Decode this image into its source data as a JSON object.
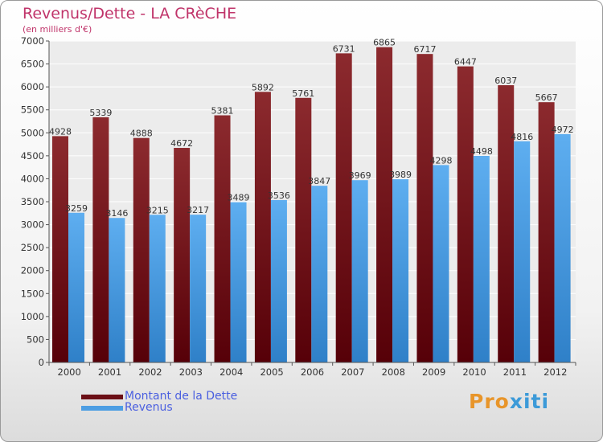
{
  "title": "Revenus/Dette - LA CRèCHE",
  "subtitle": "(en milliers d'€)",
  "brand": {
    "part1": "Pro",
    "part2": "xiti"
  },
  "colors": {
    "debt": "#7a1a20",
    "revenue": "#4d9ee3",
    "title": "#c0346a",
    "legend_text": "#4a5fe0"
  },
  "chart_data": {
    "type": "bar",
    "categories": [
      "2000",
      "2001",
      "2002",
      "2003",
      "2004",
      "2005",
      "2006",
      "2007",
      "2008",
      "2009",
      "2010",
      "2011",
      "2012"
    ],
    "series": [
      {
        "name": "Montant de la Dette",
        "values": [
          4928,
          5339,
          4888,
          4672,
          5381,
          5892,
          5761,
          6731,
          6865,
          6717,
          6447,
          6037,
          5667
        ]
      },
      {
        "name": "Revenus",
        "values": [
          3259,
          3146,
          3215,
          3217,
          3489,
          3536,
          3847,
          3969,
          3989,
          4298,
          4498,
          4816,
          4972
        ]
      }
    ],
    "ylim": [
      0,
      7000
    ],
    "yticks": [
      0,
      500,
      1000,
      1500,
      2000,
      2500,
      3000,
      3500,
      4000,
      4500,
      5000,
      5500,
      6000,
      6500,
      7000
    ],
    "grid": true,
    "legend_position": "bottom-left"
  }
}
